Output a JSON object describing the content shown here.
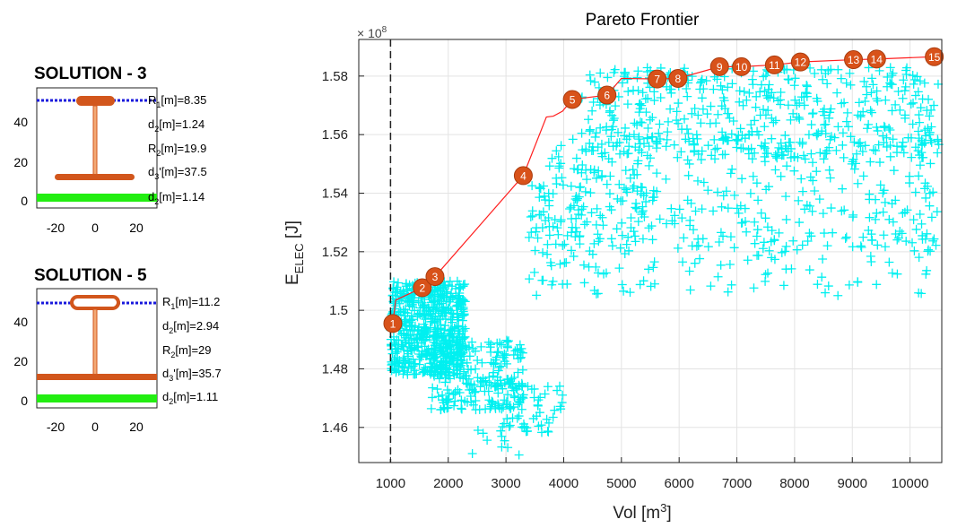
{
  "main_chart": {
    "title": "Pareto Frontier",
    "xlabel": "Vol [m",
    "xlabel_sup": "3",
    "xlabel_end": "]",
    "ylabel": "E",
    "ylabel_sub": "ELEC",
    "ylabel_end": " [J]",
    "exponent_text": "× 10",
    "exponent_power": "8",
    "xticks": [
      1000,
      2000,
      3000,
      4000,
      5000,
      6000,
      7000,
      8000,
      9000,
      10000
    ],
    "xtick_labels": [
      "1000",
      "2000",
      "3000",
      "4000",
      "5000",
      "6000",
      "7000",
      "8000",
      "9000",
      "10000"
    ],
    "yticks": [
      1.46,
      1.48,
      1.5,
      1.52,
      1.54,
      1.56,
      1.58
    ],
    "ytick_labels": [
      "1.46",
      "1.48",
      "1.5",
      "1.52",
      "1.54",
      "1.56",
      "1.58"
    ]
  },
  "solution3": {
    "title": "SOLUTION - 3",
    "labels": [
      {
        "name": "R",
        "sub": "1",
        "rest": "[m]=8.35"
      },
      {
        "name": "d",
        "sub": "2",
        "rest": "[m]=1.24"
      },
      {
        "name": "R",
        "sub": "2",
        "rest": "[m]=19.9"
      },
      {
        "name": "d",
        "sub": "3",
        "rest": "'[m]=37.5"
      },
      {
        "name": "d",
        "sub": "2",
        "rest": "[m]=1.14"
      }
    ],
    "yticks": [
      "40",
      "20",
      "0"
    ],
    "xticks": [
      "-20",
      "0",
      "20"
    ]
  },
  "solution5": {
    "title": "SOLUTION - 5",
    "labels": [
      {
        "name": "R",
        "sub": "1",
        "rest": "[m]=11.2"
      },
      {
        "name": "d",
        "sub": "2",
        "rest": "[m]=2.94"
      },
      {
        "name": "R",
        "sub": "2",
        "rest": "[m]=29"
      },
      {
        "name": "d",
        "sub": "3",
        "rest": "'[m]=35.7"
      },
      {
        "name": "d",
        "sub": "2",
        "rest": "[m]=1.11"
      }
    ],
    "yticks": [
      "40",
      "20",
      "0"
    ],
    "xticks": [
      "-20",
      "0",
      "20"
    ]
  },
  "colors": {
    "cloud": "#00f0f0",
    "frontier_line": "#ff2020",
    "marker": "#d8521a",
    "marker_label": "#ffffff",
    "rotor": "#d2561c",
    "blue_dots": "#1a1adc",
    "green_bar": "#22ee11"
  },
  "chart_data": {
    "type": "scatter",
    "title": "Pareto Frontier",
    "xlabel": "Vol [m3]",
    "ylabel": "EELEC [J]",
    "xlim": [
      450,
      10550
    ],
    "ylim": [
      1.448,
      1.5925
    ],
    "y_multiplier": "1e8",
    "grid": true,
    "reference_line_x": 1000,
    "frontier": {
      "labels": [
        "1",
        "2",
        "3",
        "4",
        "5",
        "6",
        "7",
        "8",
        "9",
        "10",
        "11",
        "12",
        "13",
        "14",
        "15"
      ],
      "x": [
        1040,
        1550,
        1770,
        3300,
        4150,
        4750,
        5620,
        5980,
        6700,
        7080,
        7650,
        8100,
        9020,
        9420,
        10420
      ],
      "y": [
        1.4955,
        1.5077,
        1.5115,
        1.546,
        1.572,
        1.5735,
        1.579,
        1.5792,
        1.5832,
        1.5832,
        1.5838,
        1.5848,
        1.5856,
        1.5858,
        1.5866
      ]
    },
    "frontier_path": {
      "x": [
        1040,
        1090,
        1550,
        1770,
        3300,
        3700,
        3820,
        3980,
        4150,
        4750,
        5000,
        5620,
        5980,
        6700,
        7080,
        7650,
        8100,
        9020,
        9420,
        10420
      ],
      "y": [
        1.4955,
        1.5035,
        1.5077,
        1.5115,
        1.546,
        1.566,
        1.5663,
        1.568,
        1.572,
        1.5735,
        1.5792,
        1.579,
        1.5792,
        1.5832,
        1.5832,
        1.5838,
        1.5848,
        1.5856,
        1.5858,
        1.5866
      ]
    },
    "cloud_regions": [
      {
        "count": 620,
        "x": [
          1000,
          2300
        ],
        "y": [
          1.478,
          1.51
        ]
      },
      {
        "count": 230,
        "x": [
          1700,
          3300
        ],
        "y": [
          1.466,
          1.49
        ]
      },
      {
        "count": 50,
        "x": [
          3000,
          4000
        ],
        "y": [
          1.458,
          1.475
        ]
      },
      {
        "count": 15,
        "x": [
          2400,
          3400
        ],
        "y": [
          1.45,
          1.462
        ]
      },
      {
        "count": 150,
        "x": [
          3400,
          5600
        ],
        "y": [
          1.505,
          1.548
        ]
      },
      {
        "count": 320,
        "x": [
          3700,
          10500
        ],
        "y": [
          1.52,
          1.56
        ]
      },
      {
        "count": 450,
        "x": [
          4300,
          10500
        ],
        "y": [
          1.552,
          1.583
        ]
      },
      {
        "count": 60,
        "x": [
          6000,
          10500
        ],
        "y": [
          1.505,
          1.525
        ]
      }
    ]
  }
}
